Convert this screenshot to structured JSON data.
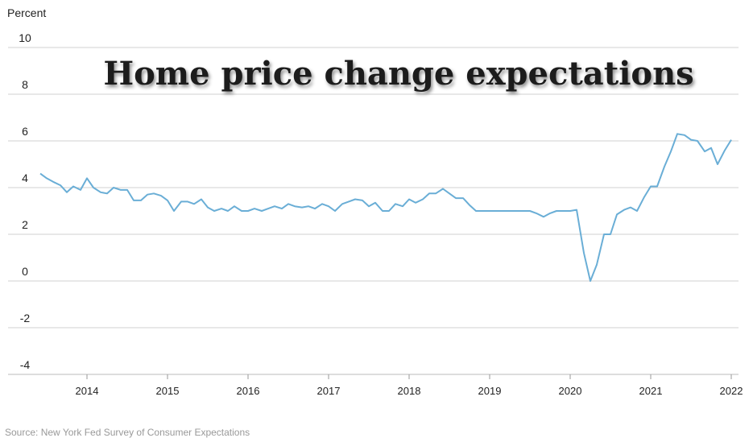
{
  "chart_data": {
    "type": "line",
    "title": "Home price change expectations",
    "ylabel": "Percent",
    "source": "Source: New York Fed Survey of Consumer Expectations",
    "ylim": [
      -4,
      10
    ],
    "xlim": [
      2013.42,
      2022.0
    ],
    "y_ticks": [
      10,
      8,
      6,
      4,
      2,
      0,
      -2,
      -4
    ],
    "x_ticks": [
      "2014",
      "2015",
      "2016",
      "2017",
      "2018",
      "2019",
      "2020",
      "2021",
      "2022"
    ],
    "grid": true,
    "colors": {
      "line": "#6aaed6",
      "grid": "#d0d0d0"
    },
    "series": [
      {
        "name": "",
        "x": [
          2013.42,
          2013.5,
          2013.58,
          2013.67,
          2013.75,
          2013.83,
          2013.92,
          2014.0,
          2014.08,
          2014.17,
          2014.25,
          2014.33,
          2014.42,
          2014.5,
          2014.58,
          2014.67,
          2014.75,
          2014.83,
          2014.92,
          2015.0,
          2015.08,
          2015.17,
          2015.25,
          2015.33,
          2015.42,
          2015.5,
          2015.58,
          2015.67,
          2015.75,
          2015.83,
          2015.92,
          2016.0,
          2016.08,
          2016.17,
          2016.25,
          2016.33,
          2016.42,
          2016.5,
          2016.58,
          2016.67,
          2016.75,
          2016.83,
          2016.92,
          2017.0,
          2017.08,
          2017.17,
          2017.25,
          2017.33,
          2017.42,
          2017.5,
          2017.58,
          2017.67,
          2017.75,
          2017.83,
          2017.92,
          2018.0,
          2018.08,
          2018.17,
          2018.25,
          2018.33,
          2018.42,
          2018.5,
          2018.58,
          2018.67,
          2018.75,
          2018.83,
          2018.92,
          2019.0,
          2019.08,
          2019.17,
          2019.25,
          2019.33,
          2019.42,
          2019.5,
          2019.58,
          2019.67,
          2019.75,
          2019.83,
          2019.92,
          2020.0,
          2020.08,
          2020.17,
          2020.25,
          2020.33,
          2020.42,
          2020.5,
          2020.58,
          2020.67,
          2020.75,
          2020.83,
          2020.92,
          2021.0,
          2021.08,
          2021.17,
          2021.25,
          2021.33,
          2021.42,
          2021.5,
          2021.58,
          2021.67,
          2021.75,
          2021.83,
          2021.92,
          2022.0
        ],
        "y": [
          4.6,
          4.4,
          4.25,
          4.1,
          3.8,
          4.05,
          3.9,
          4.4,
          4.0,
          3.8,
          3.75,
          4.0,
          3.9,
          3.9,
          3.45,
          3.45,
          3.7,
          3.75,
          3.65,
          3.45,
          3.0,
          3.4,
          3.4,
          3.3,
          3.5,
          3.15,
          3.0,
          3.1,
          3.0,
          3.2,
          3.0,
          3.0,
          3.1,
          3.0,
          3.1,
          3.2,
          3.1,
          3.3,
          3.2,
          3.15,
          3.2,
          3.1,
          3.3,
          3.2,
          3.0,
          3.3,
          3.4,
          3.5,
          3.45,
          3.2,
          3.35,
          3.0,
          3.0,
          3.3,
          3.2,
          3.5,
          3.35,
          3.5,
          3.75,
          3.75,
          3.95,
          3.75,
          3.55,
          3.55,
          3.25,
          3.0,
          3.0,
          3.0,
          3.0,
          3.0,
          3.0,
          3.0,
          3.0,
          3.0,
          2.9,
          2.75,
          2.9,
          3.0,
          3.0,
          3.0,
          3.05,
          1.2,
          0.0,
          0.7,
          2.0,
          2.0,
          2.85,
          3.05,
          3.15,
          3.0,
          3.6,
          4.05,
          4.05,
          4.9,
          5.55,
          6.3,
          6.25,
          6.05,
          6.0,
          5.55,
          5.7,
          5.0,
          5.6,
          6.05
        ]
      }
    ]
  }
}
